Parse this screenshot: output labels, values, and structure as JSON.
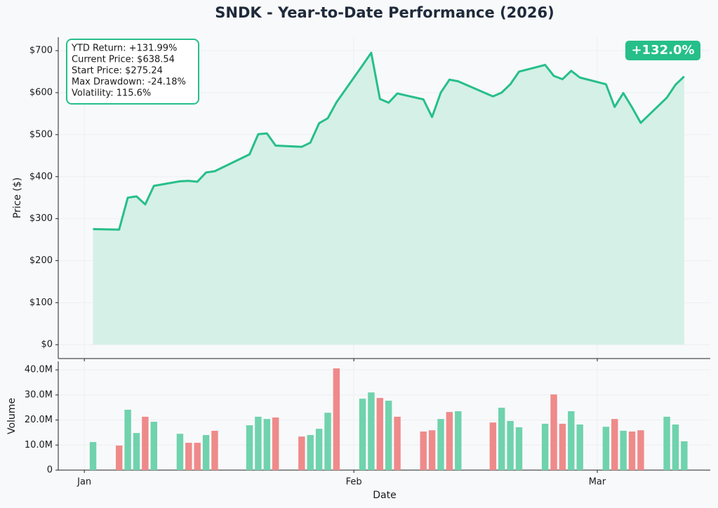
{
  "chart_data": [
    {
      "type": "area-line",
      "title": "SNDK - Year-to-Date Performance (2026)",
      "ylabel": "Price ($)",
      "color": "#26bf8a",
      "fill": "#d5f0e6",
      "x": [
        "2026-01-02",
        "2026-01-05",
        "2026-01-06",
        "2026-01-07",
        "2026-01-08",
        "2026-01-09",
        "2026-01-12",
        "2026-01-13",
        "2026-01-14",
        "2026-01-15",
        "2026-01-16",
        "2026-01-20",
        "2026-01-21",
        "2026-01-22",
        "2026-01-23",
        "2026-01-26",
        "2026-01-27",
        "2026-01-28",
        "2026-01-29",
        "2026-01-30",
        "2026-02-02",
        "2026-02-03",
        "2026-02-04",
        "2026-02-05",
        "2026-02-06",
        "2026-02-09",
        "2026-02-10",
        "2026-02-11",
        "2026-02-12",
        "2026-02-13",
        "2026-02-17",
        "2026-02-18",
        "2026-02-19",
        "2026-02-20",
        "2026-02-23",
        "2026-02-24",
        "2026-02-25",
        "2026-02-26",
        "2026-02-27",
        "2026-03-02",
        "2026-03-03",
        "2026-03-04",
        "2026-03-05",
        "2026-03-06",
        "2026-03-09",
        "2026-03-10",
        "2026-03-11"
      ],
      "values": [
        275.24,
        274,
        350,
        353,
        334,
        378,
        389,
        390,
        388,
        410,
        413,
        453,
        501,
        503,
        474,
        471,
        481,
        527,
        539,
        577,
        665,
        695,
        585,
        576,
        598,
        584,
        542,
        600,
        631,
        627,
        591,
        600,
        620,
        650,
        666,
        640,
        632,
        652,
        636,
        620,
        566,
        599,
        565,
        528,
        588,
        619,
        638.54
      ],
      "xlim": [
        "2025-12-29",
        "2026-03-14"
      ],
      "xticks": [
        "2026-01-01",
        "2026-02-01",
        "2026-03-01"
      ],
      "ylim": [
        -33,
        732
      ],
      "yticks": [
        {
          "value": 0,
          "label": "$0"
        },
        {
          "value": 100,
          "label": "$100"
        },
        {
          "value": 200,
          "label": "$200"
        },
        {
          "value": 300,
          "label": "$300"
        },
        {
          "value": 400,
          "label": "$400"
        },
        {
          "value": 500,
          "label": "$500"
        },
        {
          "value": 600,
          "label": "$600"
        },
        {
          "value": 700,
          "label": "$700"
        }
      ],
      "grid": true,
      "stats_box": [
        "YTD Return: +131.99%",
        "Current Price: $638.54",
        "Start Price: $275.24",
        "Max Drawdown: -24.18%",
        "Volatility: 115.6%"
      ],
      "badge": "+132.0%"
    },
    {
      "type": "bar",
      "xlabel": "Date",
      "ylabel": "Volume",
      "x": [
        "2026-01-02",
        "2026-01-05",
        "2026-01-06",
        "2026-01-07",
        "2026-01-08",
        "2026-01-09",
        "2026-01-12",
        "2026-01-13",
        "2026-01-14",
        "2026-01-15",
        "2026-01-16",
        "2026-01-20",
        "2026-01-21",
        "2026-01-22",
        "2026-01-23",
        "2026-01-26",
        "2026-01-27",
        "2026-01-28",
        "2026-01-29",
        "2026-01-30",
        "2026-02-02",
        "2026-02-03",
        "2026-02-04",
        "2026-02-05",
        "2026-02-06",
        "2026-02-09",
        "2026-02-10",
        "2026-02-11",
        "2026-02-12",
        "2026-02-13",
        "2026-02-17",
        "2026-02-18",
        "2026-02-19",
        "2026-02-20",
        "2026-02-23",
        "2026-02-24",
        "2026-02-25",
        "2026-02-26",
        "2026-02-27",
        "2026-03-02",
        "2026-03-03",
        "2026-03-04",
        "2026-03-05",
        "2026-03-06",
        "2026-03-09",
        "2026-03-10",
        "2026-03-11"
      ],
      "values": [
        11200000,
        9800000,
        24100000,
        14800000,
        21300000,
        19300000,
        14500000,
        10900000,
        10900000,
        14000000,
        15700000,
        17900000,
        21300000,
        20400000,
        21000000,
        13400000,
        14000000,
        16500000,
        22900000,
        40600000,
        28500000,
        31000000,
        28800000,
        27700000,
        21300000,
        15400000,
        15900000,
        20400000,
        23200000,
        23500000,
        19000000,
        24900000,
        19600000,
        17100000,
        18500000,
        30200000,
        18500000,
        23500000,
        18200000,
        17300000,
        20400000,
        15700000,
        15400000,
        15900000,
        21300000,
        18200000,
        11500000
      ],
      "colors": [
        "#6fd3ad",
        "#ef8a8a",
        "#6fd3ad",
        "#6fd3ad",
        "#ef8a8a",
        "#6fd3ad",
        "#6fd3ad",
        "#ef8a8a",
        "#ef8a8a",
        "#6fd3ad",
        "#ef8a8a",
        "#6fd3ad",
        "#6fd3ad",
        "#6fd3ad",
        "#ef8a8a",
        "#ef8a8a",
        "#6fd3ad",
        "#6fd3ad",
        "#6fd3ad",
        "#ef8a8a",
        "#6fd3ad",
        "#6fd3ad",
        "#ef8a8a",
        "#6fd3ad",
        "#ef8a8a",
        "#ef8a8a",
        "#ef8a8a",
        "#6fd3ad",
        "#ef8a8a",
        "#6fd3ad",
        "#ef8a8a",
        "#6fd3ad",
        "#6fd3ad",
        "#6fd3ad",
        "#6fd3ad",
        "#ef8a8a",
        "#ef8a8a",
        "#6fd3ad",
        "#6fd3ad",
        "#6fd3ad",
        "#ef8a8a",
        "#6fd3ad",
        "#ef8a8a",
        "#ef8a8a",
        "#6fd3ad",
        "#6fd3ad",
        "#6fd3ad"
      ],
      "xlim": [
        "2025-12-29",
        "2026-03-14"
      ],
      "xticks": [
        {
          "value": "2026-01-01",
          "label": "Jan"
        },
        {
          "value": "2026-02-01",
          "label": "Feb"
        },
        {
          "value": "2026-03-01",
          "label": "Mar"
        }
      ],
      "ylim": [
        0,
        43400000
      ],
      "yticks": [
        0,
        {
          "value": 10000000,
          "label": "10.0M"
        },
        {
          "value": 20000000,
          "label": "20.0M"
        },
        {
          "value": 30000000,
          "label": "30.0M"
        },
        {
          "value": 40000000,
          "label": "40.0M"
        }
      ],
      "grid": true
    }
  ]
}
